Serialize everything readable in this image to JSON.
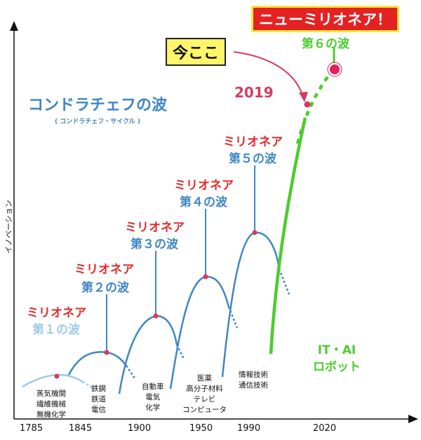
{
  "title": "コンドラチェフの波",
  "subtitle": "( コンドラチェフ・サイクル )",
  "y_axis_label": "イノベーション",
  "x_ticks": [
    "1785",
    "1845",
    "1900",
    "1950",
    "1990",
    "2020"
  ],
  "current_marker": "今ここ",
  "current_year": "2019",
  "new_millionaire": "ニューミリオネア！",
  "wave_label_millionaire": "ミリオネア",
  "waves": [
    {
      "label": "第１の波",
      "industries": [
        "蒸気機関",
        "繊維機械",
        "無機化学"
      ]
    },
    {
      "label": "第２の波",
      "industries": [
        "鉄鋼",
        "鉄道",
        "電信"
      ]
    },
    {
      "label": "第３の波",
      "industries": [
        "自動車",
        "電気",
        "化学"
      ]
    },
    {
      "label": "第４の波",
      "industries": [
        "医薬",
        "高分子材料",
        "テレビ",
        "コンピュータ"
      ]
    },
    {
      "label": "第５の波",
      "industries": [
        "情報技術",
        "通信技術"
      ]
    }
  ],
  "sixth_wave": {
    "label": "第６の波",
    "industries": [
      "IT・AI",
      "ロボット"
    ]
  },
  "colors": {
    "wave1": "#9ccbe6",
    "wave_blue": "#3f86c4",
    "wave6": "#4ccc2e",
    "millionaire_red": "#e02b2b",
    "peak_dot": "#d83a5f",
    "highlight_yellow": "#fff56a"
  }
}
